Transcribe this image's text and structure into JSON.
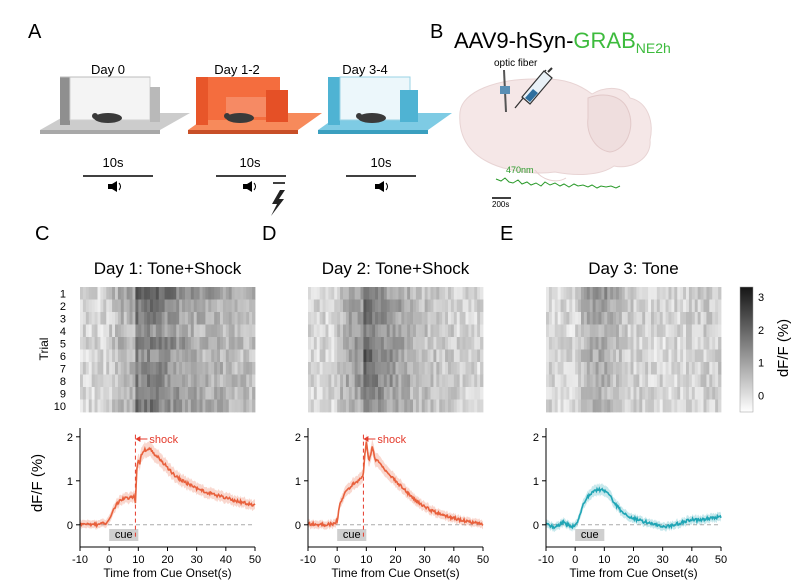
{
  "panels": {
    "A": {
      "letter": "A",
      "labels": [
        "Day 0",
        "Day 1-2",
        "Day 3-4"
      ],
      "tone_labels": [
        "10s",
        "10s",
        "10s"
      ],
      "colors": [
        "#9a9a9a",
        "#f0622e",
        "#4fb8d8"
      ]
    },
    "B": {
      "letter": "B",
      "title_prefix": "AAV9-hSyn-",
      "title_grab": "GRAB",
      "title_sub": "NE2h",
      "fiber_label": "optic fiber",
      "trace_label": "470nm",
      "scale_label": "200s",
      "sensor_color": "#3dbb3d"
    },
    "C": {
      "letter": "C",
      "title": "Day 1: Tone+Shock",
      "color": "#e8603c"
    },
    "D": {
      "letter": "D",
      "title": "Day 2: Tone+Shock",
      "color": "#e8603c"
    },
    "E": {
      "letter": "E",
      "title": "Day 3: Tone",
      "color": "#1fa5b5"
    }
  },
  "heatmap": {
    "ylabel": "Trial",
    "trials": [
      "1",
      "2",
      "3",
      "4",
      "5",
      "6",
      "7",
      "8",
      "9",
      "10"
    ],
    "colorbar_ticks": [
      "3",
      "2",
      "1",
      "0"
    ],
    "colorbar_label": "dF/F (%)",
    "range": [
      -0.5,
      3.3
    ]
  },
  "annotations": {
    "cue": "cue",
    "shock": "shock"
  },
  "axes": {
    "xlabel": "Time from Cue Onset(s)",
    "ylabel": "dF/F (%)"
  },
  "chart_data": [
    {
      "type": "line",
      "title": "Day 1: Tone+Shock",
      "xlabel": "Time from Cue Onset(s)",
      "ylabel": "dF/F (%)",
      "xlim": [
        -10,
        50
      ],
      "ylim": [
        -0.3,
        2.2
      ],
      "xticks": [
        "-10",
        "0",
        "10",
        "20",
        "30",
        "40",
        "50"
      ],
      "yticks": [
        "0",
        "1",
        "2"
      ],
      "series": [
        {
          "x": [
            -10,
            -5,
            -1,
            0,
            1,
            3,
            5,
            7,
            8.5,
            9,
            9.5,
            10,
            10.5,
            11,
            12,
            13,
            14,
            15,
            16,
            18,
            20,
            22,
            25,
            28,
            30,
            33,
            36,
            40,
            43,
            46,
            50
          ],
          "y": [
            0.02,
            0,
            0.03,
            0.1,
            0.3,
            0.5,
            0.6,
            0.62,
            0.65,
            0.5,
            1.3,
            1.45,
            1.38,
            1.6,
            1.7,
            1.68,
            1.72,
            1.65,
            1.58,
            1.45,
            1.3,
            1.15,
            1.0,
            0.9,
            0.82,
            0.75,
            0.68,
            0.62,
            0.55,
            0.5,
            0.45
          ]
        }
      ]
    },
    {
      "type": "line",
      "title": "Day 2: Tone+Shock",
      "xlabel": "Time from Cue Onset(s)",
      "ylabel": "dF/F (%)",
      "xlim": [
        -10,
        50
      ],
      "ylim": [
        -0.3,
        2.2
      ],
      "xticks": [
        "-10",
        "0",
        "10",
        "20",
        "30",
        "40",
        "50"
      ],
      "yticks": [
        "0",
        "1",
        "2"
      ],
      "series": [
        {
          "x": [
            -10,
            -5,
            -1,
            0,
            1,
            3,
            5,
            7,
            8.5,
            9,
            9.5,
            10,
            10.5,
            11,
            12,
            13,
            14,
            15,
            17,
            20,
            23,
            26,
            30,
            33,
            36,
            40,
            43,
            46,
            50
          ],
          "y": [
            0.02,
            0,
            0.02,
            0.1,
            0.5,
            0.75,
            0.9,
            1.0,
            1.1,
            1.15,
            1.6,
            1.9,
            1.6,
            1.45,
            1.75,
            1.5,
            1.45,
            1.35,
            1.2,
            1.0,
            0.8,
            0.6,
            0.42,
            0.3,
            0.22,
            0.15,
            0.1,
            0.05,
            0.02
          ]
        }
      ]
    },
    {
      "type": "line",
      "title": "Day 3: Tone",
      "xlabel": "Time from Cue Onset(s)",
      "ylabel": "dF/F (%)",
      "xlim": [
        -10,
        50
      ],
      "ylim": [
        -0.3,
        2.2
      ],
      "xticks": [
        "-10",
        "0",
        "10",
        "20",
        "30",
        "40",
        "50"
      ],
      "yticks": [
        "0",
        "1",
        "2"
      ],
      "series": [
        {
          "x": [
            -10,
            -7,
            -4,
            -2,
            -1,
            0,
            1,
            2,
            3,
            5,
            7,
            9,
            11,
            12,
            14,
            16,
            18,
            20,
            22,
            25,
            28,
            30,
            33,
            35,
            38,
            40,
            43,
            46,
            50
          ],
          "y": [
            0.02,
            -0.05,
            0.05,
            -0.02,
            -0.05,
            0.0,
            0.1,
            0.3,
            0.5,
            0.7,
            0.78,
            0.8,
            0.75,
            0.65,
            0.45,
            0.3,
            0.2,
            0.15,
            0.1,
            0.05,
            0.0,
            -0.05,
            -0.02,
            0.02,
            0.08,
            0.12,
            0.1,
            0.15,
            0.18
          ]
        }
      ]
    }
  ]
}
